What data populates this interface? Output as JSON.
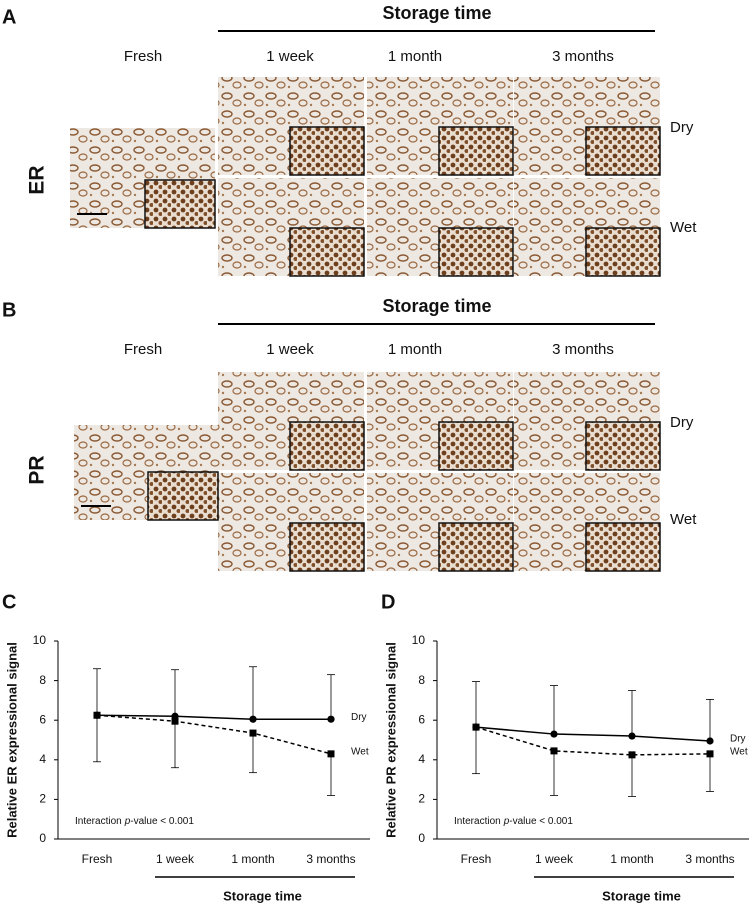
{
  "panels": [
    {
      "letter": "A",
      "marker": "ER",
      "heading": "Storage time",
      "columns": [
        "Fresh",
        "1 week",
        "1 month",
        "3 months"
      ],
      "rows": [
        "Dry",
        "Wet"
      ]
    },
    {
      "letter": "B",
      "marker": "PR",
      "heading": "Storage time",
      "columns": [
        "Fresh",
        "1 week",
        "1 month",
        "3 months"
      ],
      "rows": [
        "Dry",
        "Wet"
      ]
    }
  ],
  "chart_data": [
    {
      "type": "line",
      "panel": "C",
      "ylabel": "Relative ER expressional signal",
      "xlabel": "Storage time",
      "categories": [
        "Fresh",
        "1 week",
        "1 month",
        "3 months"
      ],
      "ylim": [
        0,
        10
      ],
      "yticks": [
        0,
        2,
        4,
        6,
        8,
        10
      ],
      "annotation": {
        "prefix": "Interaction",
        "italic": "p",
        "suffix": "-value < 0.001"
      },
      "series": [
        {
          "name": "Dry",
          "color": "#000000",
          "marker": "circle",
          "dashed": false,
          "error_direction": "up",
          "values": [
            6.25,
            6.2,
            6.05,
            6.05
          ],
          "errors": [
            2.35,
            2.35,
            2.65,
            2.25
          ]
        },
        {
          "name": "Wet",
          "color": "#000000",
          "marker": "square",
          "dashed": true,
          "error_direction": "down",
          "values": [
            6.25,
            5.95,
            5.35,
            4.3
          ],
          "errors": [
            2.35,
            2.35,
            2.0,
            2.1
          ]
        }
      ]
    },
    {
      "type": "line",
      "panel": "D",
      "ylabel": "Relative PR expressional signal",
      "xlabel": "Storage time",
      "categories": [
        "Fresh",
        "1 week",
        "1 month",
        "3 months"
      ],
      "ylim": [
        0,
        10
      ],
      "yticks": [
        0,
        2,
        4,
        6,
        8,
        10
      ],
      "annotation": {
        "prefix": "Interaction",
        "italic": "p",
        "suffix": "-value < 0.001"
      },
      "series": [
        {
          "name": "Dry",
          "color": "#000000",
          "marker": "circle",
          "dashed": false,
          "error_direction": "up",
          "values": [
            5.65,
            5.3,
            5.2,
            4.95
          ],
          "errors": [
            2.3,
            2.45,
            2.3,
            2.1
          ]
        },
        {
          "name": "Wet",
          "color": "#000000",
          "marker": "square",
          "dashed": true,
          "error_direction": "down",
          "values": [
            5.65,
            4.45,
            4.25,
            4.3
          ],
          "errors": [
            2.35,
            2.25,
            2.1,
            1.9
          ]
        }
      ]
    }
  ]
}
